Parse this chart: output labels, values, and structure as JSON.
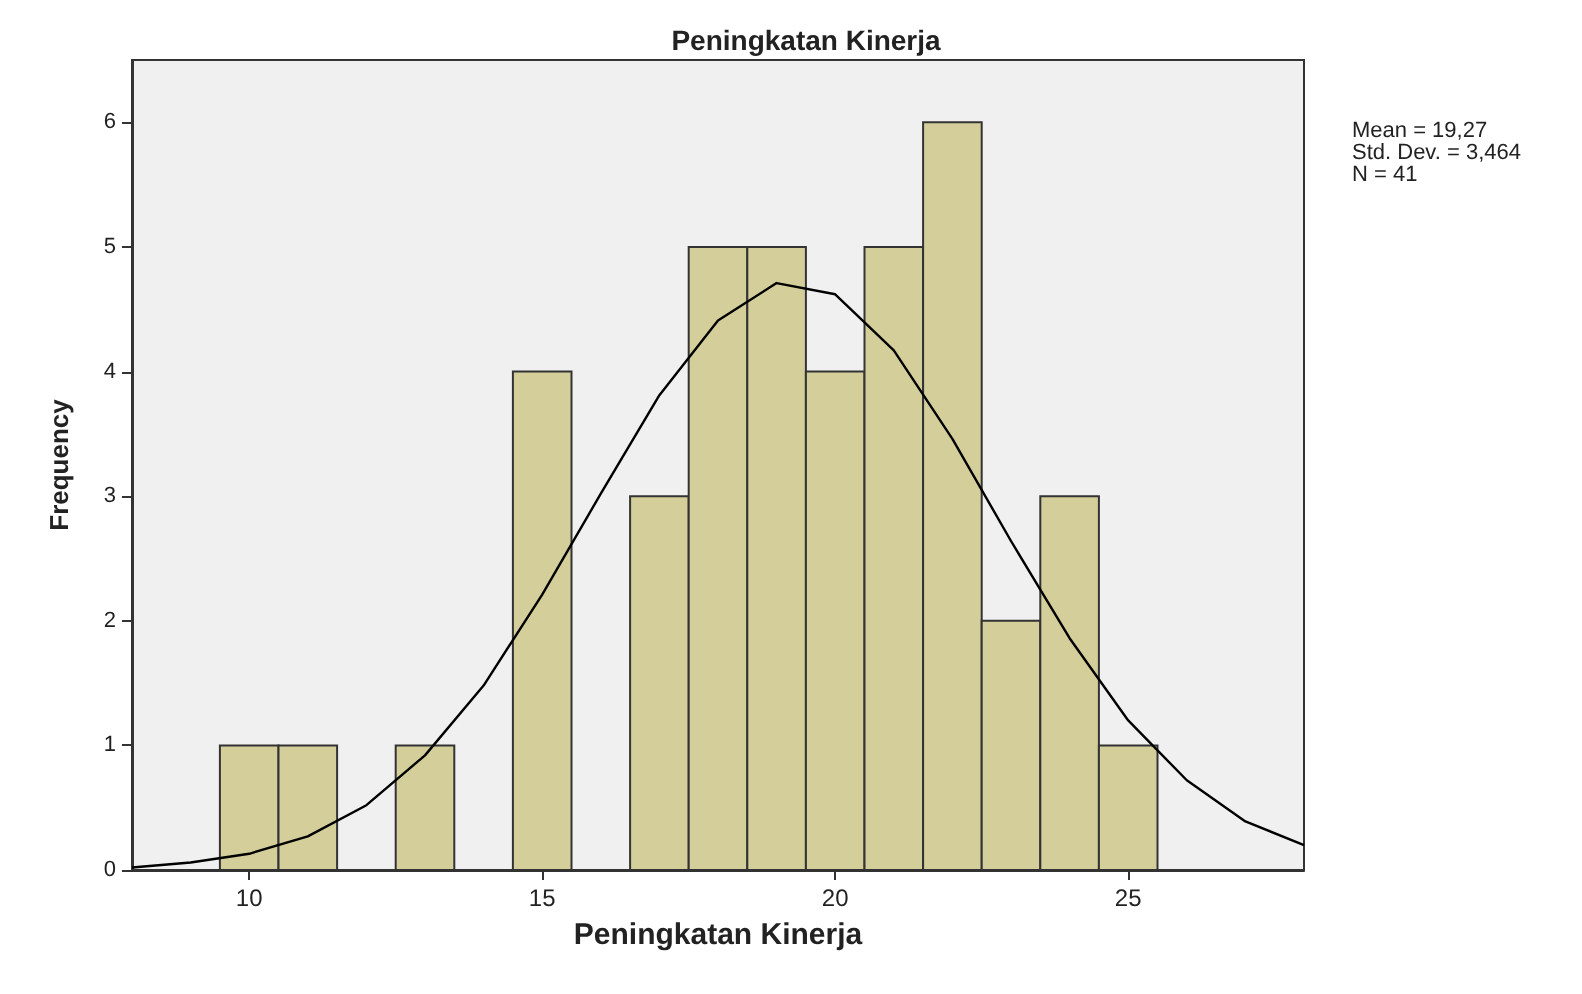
{
  "chart_data": {
    "type": "histogram",
    "title": "Peningkatan Kinerja",
    "xlabel": "Peningkatan Kinerja",
    "ylabel": "Frequency",
    "annotations": [
      "Mean = 19,27",
      "Std. Dev. = 3,464",
      "N = 41"
    ],
    "bins": [
      9.5,
      10.5,
      11.5,
      12.5,
      13.5,
      14.5,
      15.5,
      16.5,
      17.5,
      18.5,
      19.5,
      20.5,
      21.5,
      22.5,
      23.5,
      24.5,
      25.5
    ],
    "series": [
      {
        "color": "#d3ce9a",
        "values": [
          1,
          1,
          0,
          1,
          0,
          4,
          0,
          3,
          5,
          5,
          4,
          5,
          6,
          2,
          3,
          1
        ]
      },
      {
        "type": "line",
        "color": "#000000",
        "x": [
          8,
          9,
          10,
          11,
          12,
          13,
          14,
          15,
          16,
          17,
          18,
          19,
          20,
          21,
          22,
          23,
          24,
          25,
          26,
          27,
          28
        ],
        "values": [
          0.02,
          0.06,
          0.13,
          0.27,
          0.52,
          0.92,
          1.48,
          2.21,
          3.02,
          3.81,
          4.41,
          4.71,
          4.62,
          4.17,
          3.46,
          2.64,
          1.86,
          1.2,
          0.72,
          0.39,
          0.2
        ]
      }
    ],
    "marker": "none",
    "xlim": [
      8,
      28
    ],
    "xticks": [
      10,
      15,
      20,
      25
    ],
    "ylim": [
      0,
      6.5
    ],
    "yticks": [
      0,
      1,
      2,
      3,
      4,
      5,
      6
    ]
  }
}
